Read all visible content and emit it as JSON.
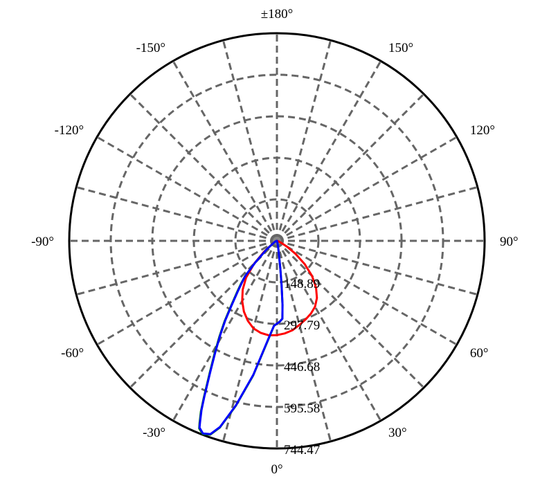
{
  "chart_data": {
    "type": "polar",
    "title": "",
    "radial_max": 744.47,
    "radial_ticks": [
      148.89,
      297.79,
      446.68,
      595.58,
      744.47
    ],
    "radial_tick_labels": [
      "148.89",
      "297.79",
      "446.68",
      "595.58",
      "744.47"
    ],
    "angle_ticks": [
      {
        "angle": 0,
        "label": "0°"
      },
      {
        "angle": 30,
        "label": "30°"
      },
      {
        "angle": 60,
        "label": "60°"
      },
      {
        "angle": 90,
        "label": "90°"
      },
      {
        "angle": 120,
        "label": "120°"
      },
      {
        "angle": 150,
        "label": "150°"
      },
      {
        "angle": 180,
        "label": "±180°"
      },
      {
        "angle": -150,
        "label": "-150°"
      },
      {
        "angle": -120,
        "label": "-120°"
      },
      {
        "angle": -90,
        "label": "-90°"
      },
      {
        "angle": -60,
        "label": "-60°"
      },
      {
        "angle": -30,
        "label": "-30°"
      }
    ],
    "spoke_step_deg": 15,
    "grid": true,
    "series": [
      {
        "color": "#ff0000",
        "points": [
          [
            -90,
            0
          ],
          [
            -75,
            3
          ],
          [
            -60,
            13
          ],
          [
            -50,
            60
          ],
          [
            -45,
            115
          ],
          [
            -40,
            172
          ],
          [
            -35,
            214
          ],
          [
            -30,
            249
          ],
          [
            -25,
            280
          ],
          [
            -20,
            305
          ],
          [
            -15,
            325
          ],
          [
            -10,
            335
          ],
          [
            -5,
            340
          ],
          [
            0,
            338
          ],
          [
            5,
            333
          ],
          [
            10,
            325
          ],
          [
            15,
            312
          ],
          [
            20,
            300
          ],
          [
            25,
            288
          ],
          [
            30,
            273
          ],
          [
            35,
            250
          ],
          [
            40,
            218
          ],
          [
            45,
            178
          ],
          [
            50,
            130
          ],
          [
            55,
            82
          ],
          [
            60,
            42
          ],
          [
            65,
            18
          ],
          [
            70,
            8
          ],
          [
            80,
            3
          ],
          [
            90,
            0
          ]
        ]
      },
      {
        "color": "#008000",
        "points": [
          [
            -90,
            0
          ],
          [
            -80,
            2
          ],
          [
            -70,
            5
          ],
          [
            -60,
            12
          ],
          [
            -50,
            50
          ],
          [
            -45,
            110
          ],
          [
            -42,
            170
          ],
          [
            -40,
            200
          ],
          [
            -38,
            230
          ],
          [
            -35,
            290
          ],
          [
            -33,
            345
          ],
          [
            -31,
            400
          ],
          [
            -29,
            460
          ],
          [
            -27,
            530
          ],
          [
            -25,
            620
          ],
          [
            -24,
            670
          ],
          [
            -23,
            710
          ],
          [
            -22.5,
            728
          ],
          [
            -21,
            742
          ],
          [
            -19,
            735
          ],
          [
            -17,
            700
          ],
          [
            -14,
            610
          ],
          [
            -10,
            490
          ],
          [
            -5,
            355
          ],
          [
            -2,
            305
          ],
          [
            0,
            297
          ],
          [
            2,
            290
          ],
          [
            4,
            280
          ],
          [
            5,
            230
          ],
          [
            6,
            160
          ],
          [
            7,
            100
          ],
          [
            10,
            30
          ],
          [
            15,
            8
          ],
          [
            25,
            2
          ],
          [
            90,
            0
          ]
        ]
      },
      {
        "color": "#0000ff",
        "points": [
          [
            -90,
            0
          ],
          [
            -80,
            2
          ],
          [
            -70,
            5
          ],
          [
            -60,
            12
          ],
          [
            -50,
            50
          ],
          [
            -45,
            110
          ],
          [
            -42,
            170
          ],
          [
            -40,
            195
          ],
          [
            -38,
            225
          ],
          [
            -35,
            285
          ],
          [
            -33,
            340
          ],
          [
            -31,
            395
          ],
          [
            -29,
            455
          ],
          [
            -27,
            525
          ],
          [
            -25,
            615
          ],
          [
            -24,
            665
          ],
          [
            -23,
            705
          ],
          [
            -22.5,
            725
          ],
          [
            -21,
            740
          ],
          [
            -19,
            733
          ],
          [
            -17,
            698
          ],
          [
            -14,
            608
          ],
          [
            -10,
            488
          ],
          [
            -5,
            353
          ],
          [
            -2,
            305
          ],
          [
            0,
            297
          ],
          [
            2,
            290
          ],
          [
            4,
            280
          ],
          [
            5,
            230
          ],
          [
            6,
            160
          ],
          [
            7,
            100
          ],
          [
            10,
            30
          ],
          [
            15,
            8
          ],
          [
            25,
            2
          ],
          [
            90,
            0
          ]
        ]
      }
    ]
  }
}
